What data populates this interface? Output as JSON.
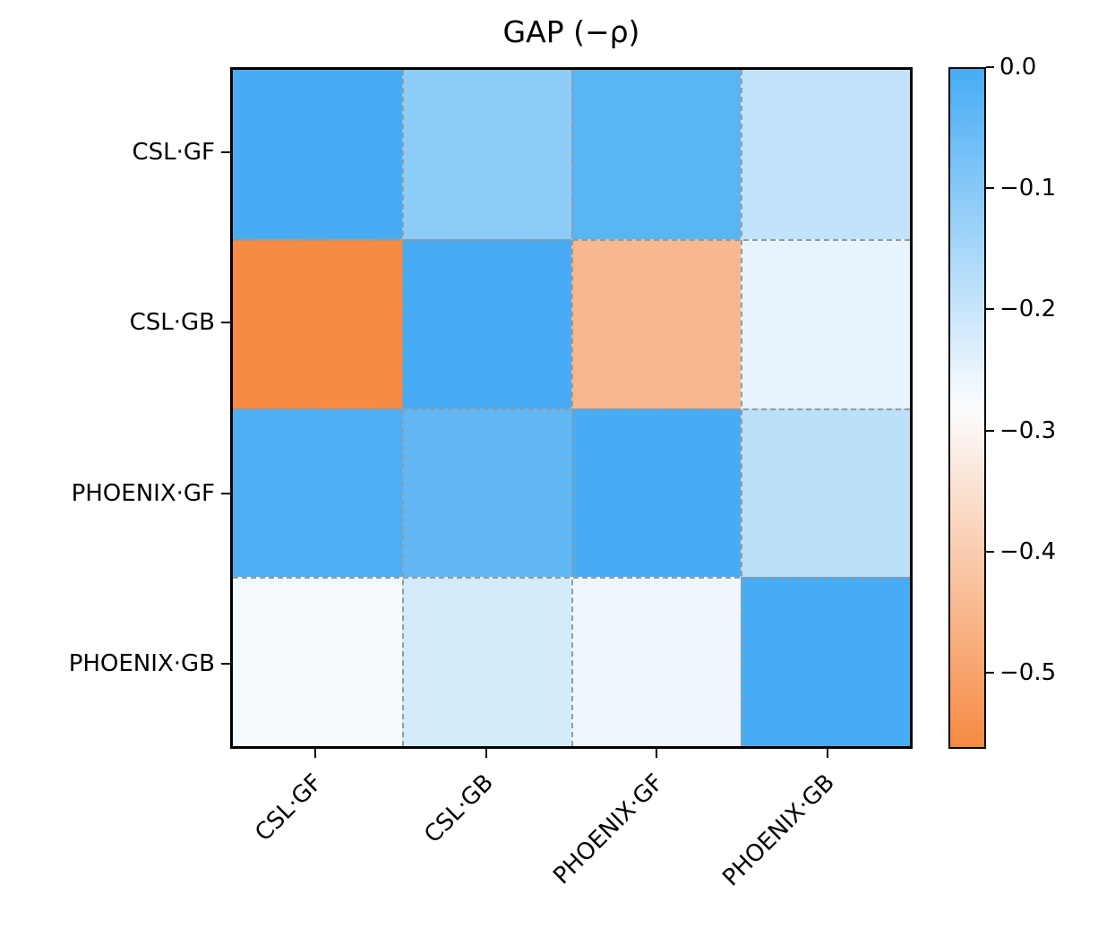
{
  "title": "GAP (−ρ)",
  "colors": {
    "colormap_high_blue": "#47acf4",
    "colormap_mid_white": "#fcfdfe",
    "colormap_low_orange": "#f68a43",
    "gridline_gray": "#999999",
    "frame_black": "#000000"
  },
  "chart_data": {
    "type": "heatmap",
    "title": "GAP (−ρ)",
    "row_labels": [
      "CSL·GF",
      "CSL·GB",
      "PHOENIX·GF",
      "PHOENIX·GB"
    ],
    "col_labels": [
      "CSL·GF",
      "CSL·GB",
      "PHOENIX·GF",
      "PHOENIX·GB"
    ],
    "matrix": [
      [
        0.0,
        -0.11,
        -0.03,
        -0.19
      ],
      [
        -0.56,
        0.0,
        -0.45,
        -0.25
      ],
      [
        -0.01,
        -0.04,
        0.0,
        -0.18
      ],
      [
        -0.27,
        -0.22,
        -0.26,
        0.0
      ]
    ],
    "vmax": 0.0,
    "vmin": -0.563,
    "colormap": {
      "high": "#47acf4",
      "mid": "#fcfdfe",
      "low": "#f68a43",
      "midpoint_value": -0.2815
    },
    "colorbar_ticks": [
      {
        "value": 0.0,
        "label": "0.0"
      },
      {
        "value": -0.1,
        "label": "−0.1"
      },
      {
        "value": -0.2,
        "label": "−0.2"
      },
      {
        "value": -0.3,
        "label": "−0.3"
      },
      {
        "value": -0.4,
        "label": "−0.4"
      },
      {
        "value": -0.5,
        "label": "−0.5"
      }
    ],
    "grid": "dashed-internal",
    "legend_position": "right-colorbar"
  }
}
